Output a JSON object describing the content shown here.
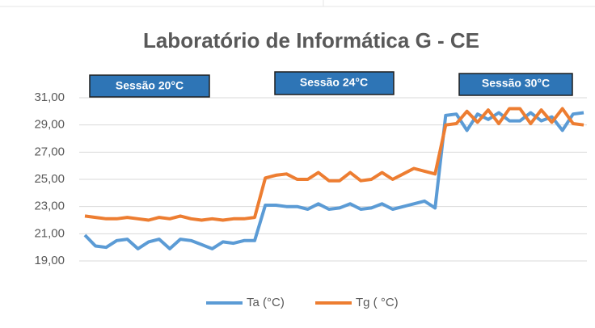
{
  "chart_data": {
    "type": "line",
    "title": "Laboratório de Informática G - CE",
    "annotations": [
      "Sessão 20°C",
      "Sessão 24°C",
      "Sessão 30°C"
    ],
    "ylim": [
      19,
      31
    ],
    "yticks": [
      {
        "value": 19,
        "label": "19,00"
      },
      {
        "value": 21,
        "label": "21,00"
      },
      {
        "value": 23,
        "label": "23,00"
      },
      {
        "value": 25,
        "label": "25,00"
      },
      {
        "value": 27,
        "label": "27,00"
      },
      {
        "value": 29,
        "label": "29,00"
      },
      {
        "value": 31,
        "label": "31,00"
      }
    ],
    "grid": true,
    "legend": "bottom",
    "series": [
      {
        "name": "Ta (°C)",
        "color": "#5b9bd5",
        "values": [
          20.9,
          20.1,
          20.0,
          20.5,
          20.6,
          19.9,
          20.4,
          20.6,
          19.9,
          20.6,
          20.5,
          20.2,
          19.9,
          20.4,
          20.3,
          20.5,
          20.5,
          23.1,
          23.1,
          23.0,
          23.0,
          22.8,
          23.2,
          22.8,
          22.9,
          23.2,
          22.8,
          22.9,
          23.2,
          22.8,
          23.0,
          23.2,
          23.4,
          22.9,
          29.7,
          29.8,
          28.6,
          29.8,
          29.4,
          29.9,
          29.3,
          29.3,
          29.9,
          29.3,
          29.6,
          28.6,
          29.8,
          29.9
        ]
      },
      {
        "name": "Tg ( °C)",
        "color": "#ed7d31",
        "values": [
          22.3,
          22.2,
          22.1,
          22.1,
          22.2,
          22.1,
          22.0,
          22.2,
          22.1,
          22.3,
          22.1,
          22.0,
          22.1,
          22.0,
          22.1,
          22.1,
          22.2,
          25.1,
          25.3,
          25.4,
          25.0,
          25.0,
          25.5,
          24.9,
          24.9,
          25.5,
          24.9,
          25.0,
          25.5,
          25.0,
          25.4,
          25.8,
          25.6,
          25.4,
          29.0,
          29.1,
          30.0,
          29.2,
          30.1,
          29.1,
          30.2,
          30.2,
          29.1,
          30.1,
          29.2,
          30.2,
          29.1,
          29.0
        ]
      }
    ]
  }
}
